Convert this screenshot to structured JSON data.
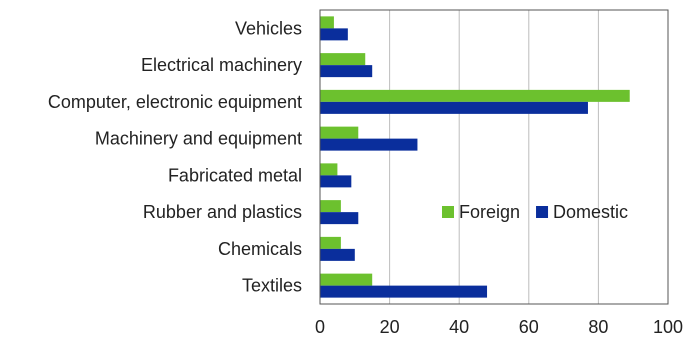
{
  "chart_data": {
    "type": "bar",
    "orientation": "horizontal",
    "categories": [
      "Vehicles",
      "Electrical machinery",
      "Computer, electronic equipment",
      "Machinery and equipment",
      "Fabricated metal",
      "Rubber and plastics",
      "Chemicals",
      "Textiles"
    ],
    "series": [
      {
        "name": "Foreign",
        "color": "#6cc12e",
        "values": [
          4,
          13,
          89,
          11,
          5,
          6,
          6,
          15
        ]
      },
      {
        "name": "Domestic",
        "color": "#0a2e9c",
        "values": [
          8,
          15,
          77,
          28,
          9,
          11,
          10,
          48
        ]
      }
    ],
    "xlim": [
      0,
      100
    ],
    "xticks": [
      0,
      20,
      40,
      60,
      80,
      100
    ],
    "title": "",
    "xlabel": "",
    "ylabel": "",
    "grid": "vertical",
    "legend_position": "inside-right"
  }
}
